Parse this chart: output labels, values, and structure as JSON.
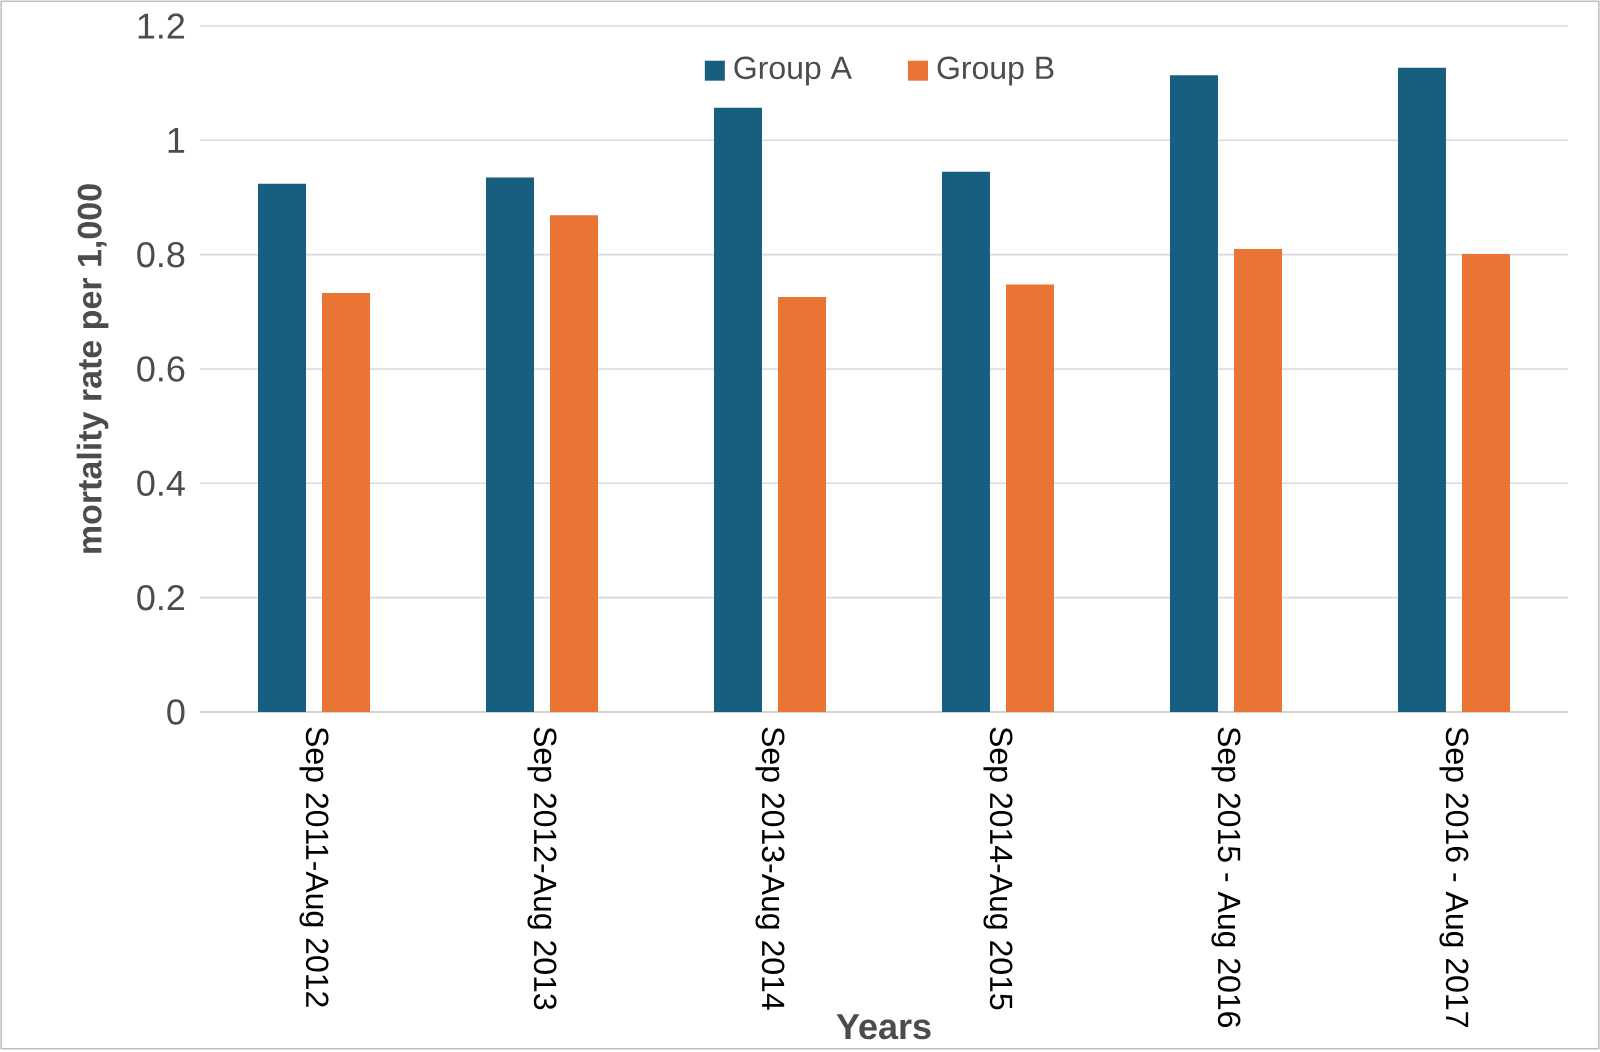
{
  "chart_data": {
    "type": "bar",
    "xlabel": "Years",
    "ylabel": "mortality rate per 1,000",
    "categories": [
      "Sep 2011-Aug 2012",
      "Sep 2012-Aug 2013",
      "Sep 2013-Aug 2014",
      "Sep 2014-Aug 2015",
      "Sep 2015 - Aug 2016",
      "Sep 2016 - Aug 2017"
    ],
    "series": [
      {
        "name": "Group A",
        "color": "#175e7f",
        "values": [
          0.924,
          0.935,
          1.057,
          0.945,
          1.114,
          1.127
        ]
      },
      {
        "name": "Group B",
        "color": "#ea7433",
        "values": [
          0.733,
          0.869,
          0.726,
          0.748,
          0.81,
          0.801
        ]
      }
    ],
    "ylim": [
      0,
      1.2
    ],
    "yticks": [
      0,
      0.2,
      0.4,
      0.6,
      0.8,
      1,
      1.2
    ],
    "grid": "y",
    "legend": "top"
  }
}
